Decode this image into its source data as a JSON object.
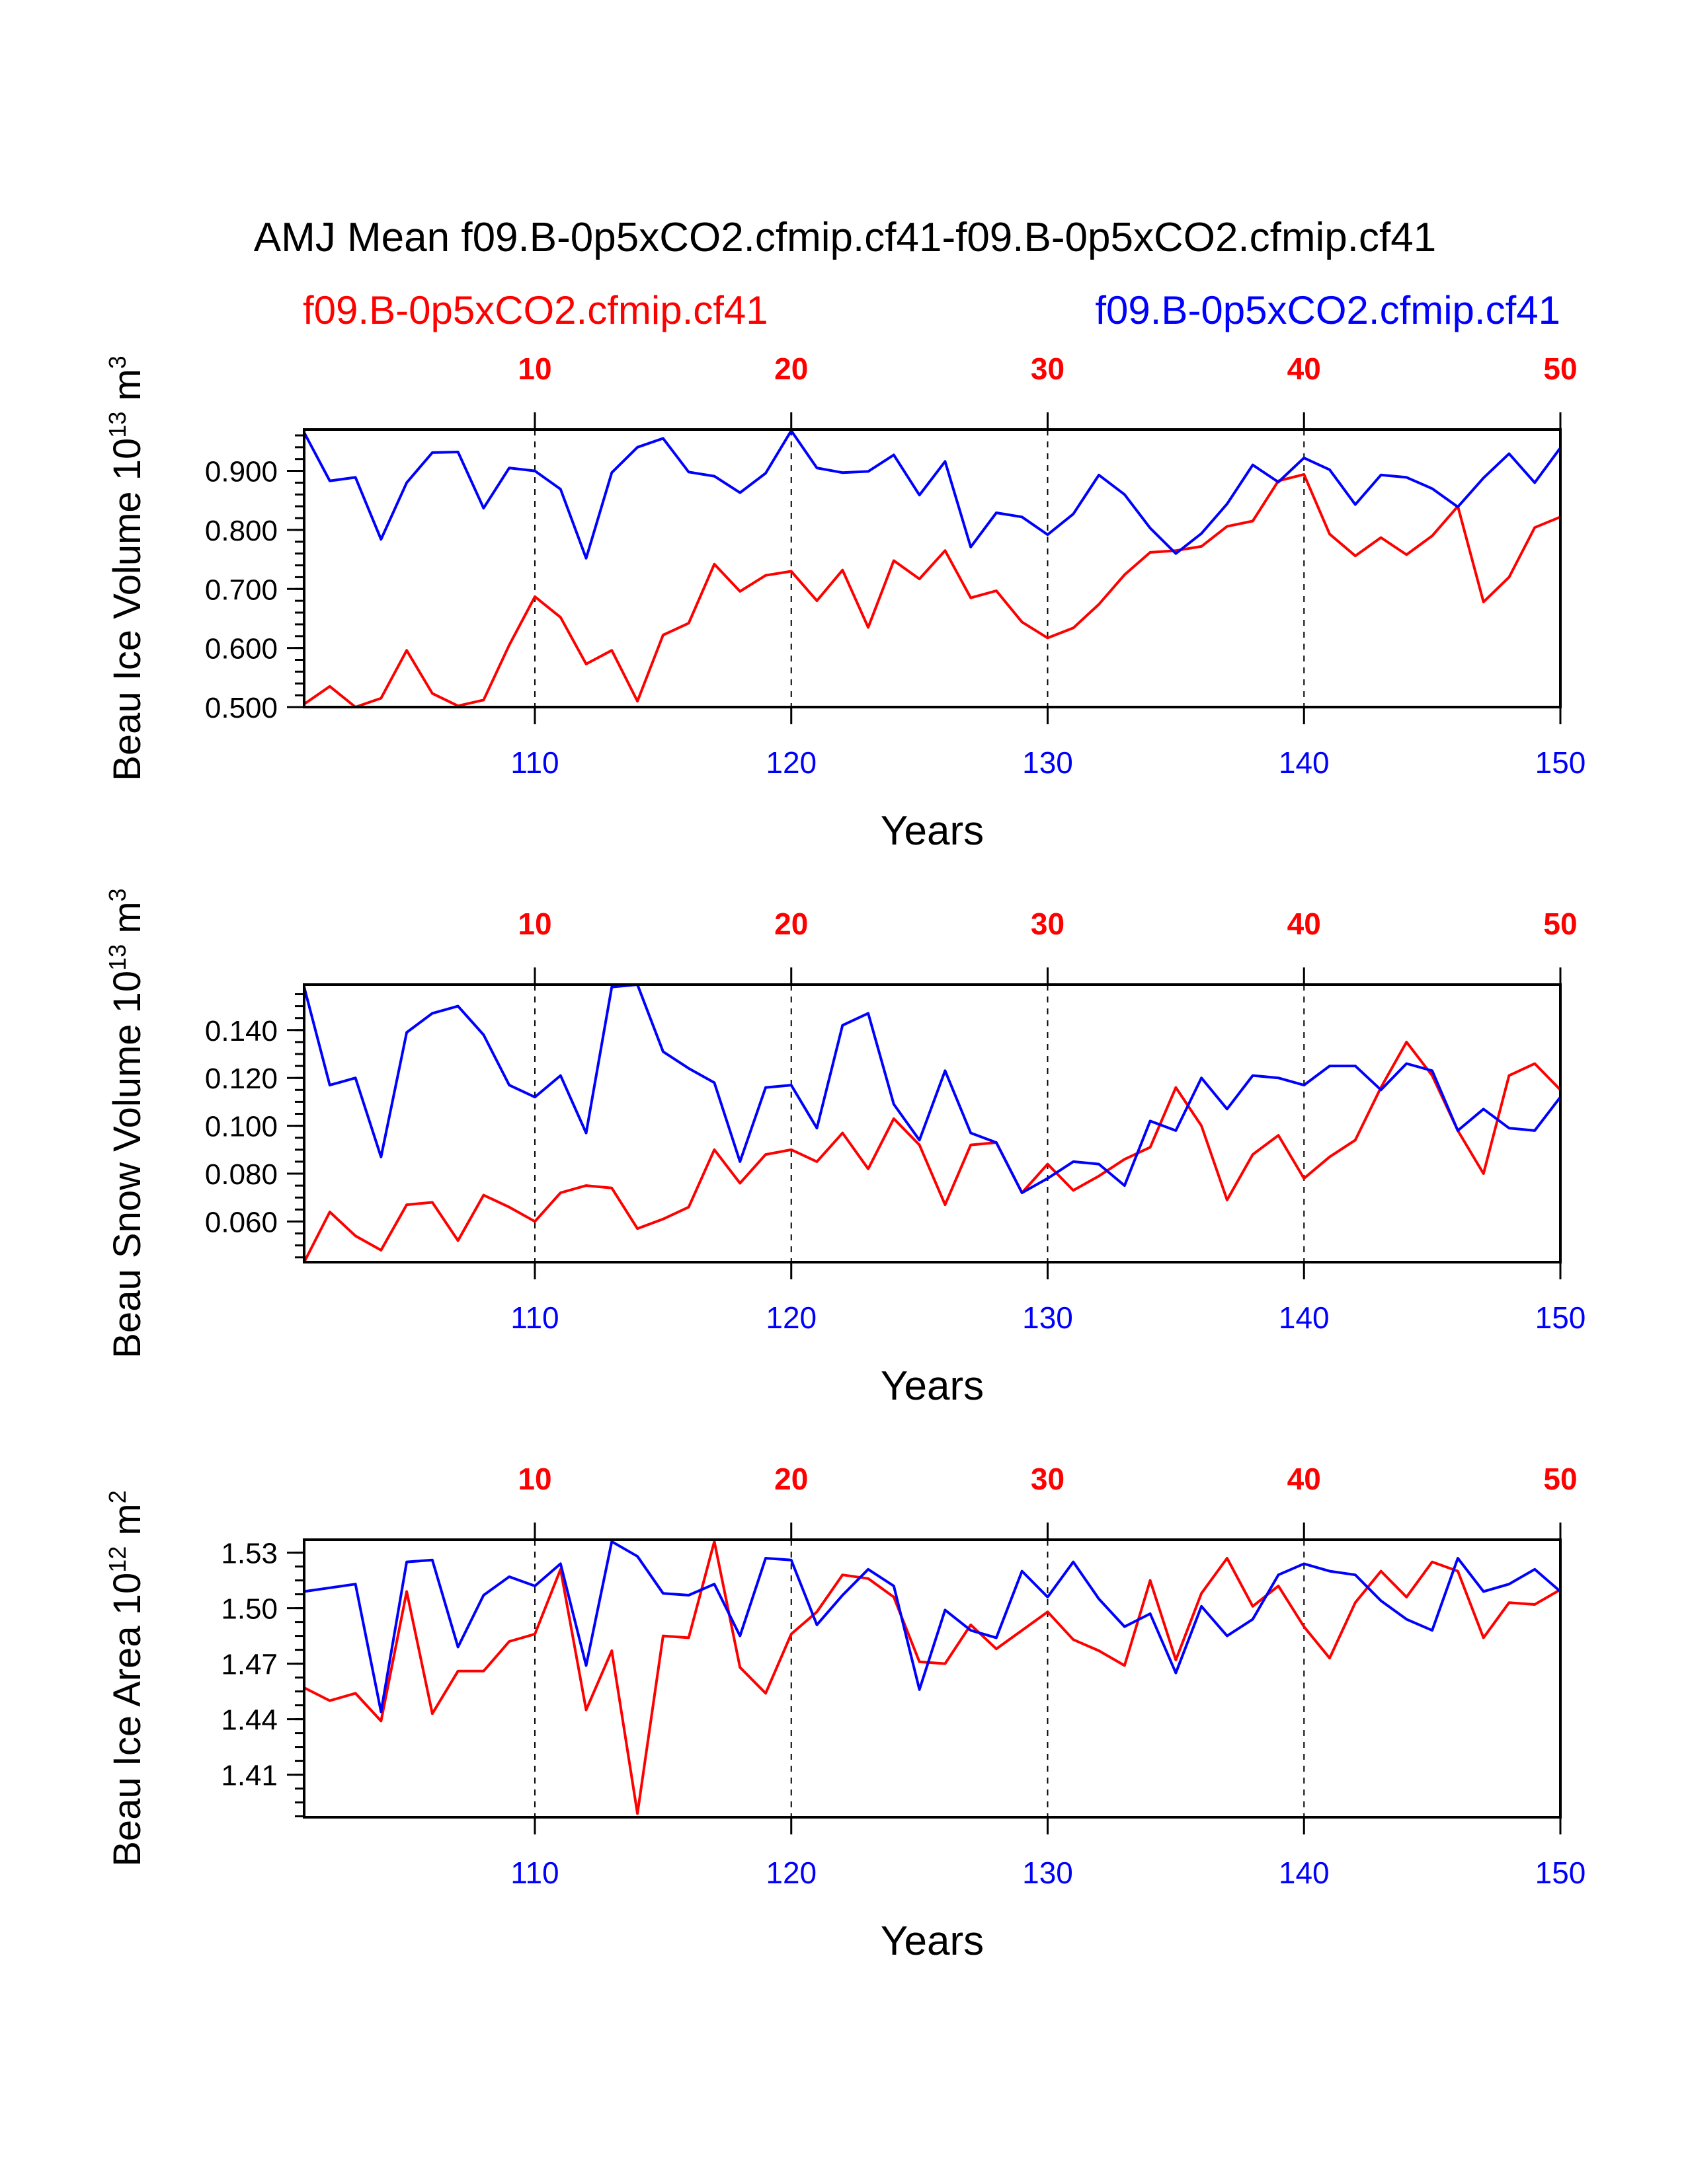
{
  "title": "AMJ Mean f09.B-0p5xCO2.cfmip.cf41-f09.B-0p5xCO2.cfmip.cf41",
  "legend": {
    "left": "f09.B-0p5xCO2.cfmip.cf41",
    "right": "f09.B-0p5xCO2.cfmip.cf41"
  },
  "colors": {
    "red": "#ff0000",
    "blue": "#0000ff",
    "axis": "#000000"
  },
  "chart_data": [
    {
      "type": "line",
      "ylabel": "Beau Ice Volume 10^13 m^3",
      "ylabel_main": "Beau Ice Volume 10",
      "ylabel_exp": "13",
      "ylabel_unit": " m",
      "ylabel_unit_exp": "3",
      "xlabel": "Years",
      "ylim": [
        0.5,
        0.97
      ],
      "yticks": [
        0.5,
        0.6,
        0.7,
        0.8,
        0.9
      ],
      "ytick_labels": [
        "0.500",
        "0.600",
        "0.700",
        "0.800",
        "0.900"
      ],
      "yminor_step": 0.02,
      "xlim": [
        101,
        150
      ],
      "bottom_xticks": [
        110,
        120,
        130,
        140,
        150
      ],
      "bottom_xtick_labels": [
        "110",
        "120",
        "130",
        "140",
        "150"
      ],
      "top_xtick_labels": [
        "10",
        "20",
        "30",
        "40",
        "50"
      ],
      "grid": "dashed vertical at 110, 120, 130, 140",
      "x": [
        101,
        102,
        103,
        104,
        105,
        106,
        107,
        108,
        109,
        110,
        111,
        112,
        113,
        114,
        115,
        116,
        117,
        118,
        119,
        120,
        121,
        122,
        123,
        124,
        125,
        126,
        127,
        128,
        129,
        130,
        131,
        132,
        133,
        134,
        135,
        136,
        137,
        138,
        139,
        140,
        141,
        142,
        143,
        144,
        145,
        146,
        147,
        148,
        149,
        150
      ],
      "series": [
        {
          "name": "f09.B-0p5xCO2.cfmip.cf41 (red)",
          "color": "red",
          "values": [
            0.505,
            0.535,
            0.5,
            0.515,
            0.596,
            0.523,
            0.502,
            0.512,
            0.605,
            0.687,
            0.652,
            0.573,
            0.596,
            0.51,
            0.622,
            0.642,
            0.742,
            0.696,
            0.723,
            0.73,
            0.68,
            0.732,
            0.635,
            0.748,
            0.717,
            0.765,
            0.685,
            0.697,
            0.644,
            0.617,
            0.634,
            0.674,
            0.724,
            0.762,
            0.765,
            0.772,
            0.806,
            0.815,
            0.883,
            0.894,
            0.793,
            0.756,
            0.787,
            0.758,
            0.79,
            0.84,
            0.678,
            0.72,
            0.804,
            0.822
          ]
        },
        {
          "name": "f09.B-0p5xCO2.cfmip.cf41 (blue)",
          "color": "blue",
          "values": [
            0.965,
            0.883,
            0.889,
            0.784,
            0.88,
            0.931,
            0.932,
            0.837,
            0.905,
            0.9,
            0.869,
            0.752,
            0.897,
            0.94,
            0.955,
            0.898,
            0.891,
            0.863,
            0.896,
            0.968,
            0.905,
            0.897,
            0.899,
            0.927,
            0.859,
            0.916,
            0.771,
            0.829,
            0.822,
            0.792,
            0.827,
            0.893,
            0.86,
            0.803,
            0.76,
            0.794,
            0.844,
            0.91,
            0.881,
            0.922,
            0.902,
            0.843,
            0.893,
            0.889,
            0.87,
            0.839,
            0.888,
            0.929,
            0.88,
            0.939
          ]
        }
      ]
    },
    {
      "type": "line",
      "ylabel": "Beau Snow Volume 10^13 m^3",
      "ylabel_main": "Beau Snow Volume 10",
      "ylabel_exp": "13",
      "ylabel_unit": " m",
      "ylabel_unit_exp": "3",
      "xlabel": "Years",
      "ylim": [
        0.043,
        0.159
      ],
      "yticks": [
        0.06,
        0.08,
        0.1,
        0.12,
        0.14
      ],
      "ytick_labels": [
        "0.060",
        "0.080",
        "0.100",
        "0.120",
        "0.140"
      ],
      "yminor_step": 0.005,
      "xlim": [
        101,
        150
      ],
      "bottom_xticks": [
        110,
        120,
        130,
        140,
        150
      ],
      "bottom_xtick_labels": [
        "110",
        "120",
        "130",
        "140",
        "150"
      ],
      "top_xtick_labels": [
        "10",
        "20",
        "30",
        "40",
        "50"
      ],
      "grid": "dashed vertical at 110, 120, 130, 140",
      "x": [
        101,
        102,
        103,
        104,
        105,
        106,
        107,
        108,
        109,
        110,
        111,
        112,
        113,
        114,
        115,
        116,
        117,
        118,
        119,
        120,
        121,
        122,
        123,
        124,
        125,
        126,
        127,
        128,
        129,
        130,
        131,
        132,
        133,
        134,
        135,
        136,
        137,
        138,
        139,
        140,
        141,
        142,
        143,
        144,
        145,
        146,
        147,
        148,
        149,
        150
      ],
      "series": [
        {
          "name": "f09.B-0p5xCO2.cfmip.cf41 (red)",
          "color": "red",
          "values": [
            0.043,
            0.064,
            0.054,
            0.048,
            0.067,
            0.068,
            0.052,
            0.071,
            0.066,
            0.06,
            0.072,
            0.075,
            0.074,
            0.057,
            0.061,
            0.066,
            0.09,
            0.076,
            0.088,
            0.09,
            0.085,
            0.097,
            0.082,
            0.103,
            0.092,
            0.067,
            0.092,
            0.093,
            0.072,
            0.084,
            0.073,
            0.079,
            0.086,
            0.091,
            0.116,
            0.1,
            0.069,
            0.088,
            0.096,
            0.078,
            0.087,
            0.094,
            0.116,
            0.135,
            0.121,
            0.098,
            0.08,
            0.121,
            0.126,
            0.115
          ]
        },
        {
          "name": "f09.B-0p5xCO2.cfmip.cf41 (blue)",
          "color": "blue",
          "values": [
            0.158,
            0.117,
            0.12,
            0.087,
            0.139,
            0.147,
            0.15,
            0.138,
            0.117,
            0.112,
            0.121,
            0.097,
            0.158,
            0.159,
            0.131,
            0.124,
            0.118,
            0.085,
            0.116,
            0.117,
            0.099,
            0.142,
            0.147,
            0.109,
            0.094,
            0.123,
            0.097,
            0.093,
            0.072,
            0.078,
            0.085,
            0.084,
            0.075,
            0.102,
            0.098,
            0.12,
            0.107,
            0.121,
            0.12,
            0.117,
            0.125,
            0.125,
            0.115,
            0.126,
            0.123,
            0.098,
            0.107,
            0.099,
            0.098,
            0.112
          ]
        }
      ]
    },
    {
      "type": "line",
      "ylabel": "Beau Ice Area 10^12 m^2",
      "ylabel_main": "Beau Ice Area 10",
      "ylabel_exp": "12",
      "ylabel_unit": " m",
      "ylabel_unit_exp": "2",
      "xlabel": "Years",
      "ylim": [
        1.387,
        1.537
      ],
      "yticks": [
        1.41,
        1.44,
        1.47,
        1.5,
        1.53
      ],
      "ytick_labels": [
        "1.41",
        "1.44",
        "1.47",
        "1.50",
        "1.53"
      ],
      "yminor_step": 0.0075,
      "xlim": [
        101,
        150
      ],
      "bottom_xticks": [
        110,
        120,
        130,
        140,
        150
      ],
      "bottom_xtick_labels": [
        "110",
        "120",
        "130",
        "140",
        "150"
      ],
      "top_xtick_labels": [
        "10",
        "20",
        "30",
        "40",
        "50"
      ],
      "grid": "dashed vertical at 110, 120, 130, 140",
      "x": [
        101,
        102,
        103,
        104,
        105,
        106,
        107,
        108,
        109,
        110,
        111,
        112,
        113,
        114,
        115,
        116,
        117,
        118,
        119,
        120,
        121,
        122,
        123,
        124,
        125,
        126,
        127,
        128,
        129,
        130,
        131,
        132,
        133,
        134,
        135,
        136,
        137,
        138,
        139,
        140,
        141,
        142,
        143,
        144,
        145,
        146,
        147,
        148,
        149,
        150
      ],
      "series": [
        {
          "name": "f09.B-0p5xCO2.cfmip.cf41 (red)",
          "color": "red",
          "values": [
            1.457,
            1.45,
            1.454,
            1.439,
            1.509,
            1.443,
            1.466,
            1.466,
            1.482,
            1.486,
            1.521,
            1.445,
            1.477,
            1.389,
            1.485,
            1.484,
            1.536,
            1.468,
            1.454,
            1.486,
            1.498,
            1.518,
            1.516,
            1.506,
            1.471,
            1.47,
            1.491,
            1.478,
            1.488,
            1.498,
            1.483,
            1.477,
            1.469,
            1.515,
            1.472,
            1.508,
            1.527,
            1.501,
            1.512,
            1.49,
            1.473,
            1.503,
            1.52,
            1.506,
            1.525,
            1.52,
            1.484,
            1.503,
            1.502,
            1.51
          ]
        },
        {
          "name": "f09.B-0p5xCO2.cfmip.cf41 (blue)",
          "color": "blue",
          "values": [
            1.509,
            1.511,
            1.513,
            1.444,
            1.525,
            1.526,
            1.479,
            1.507,
            1.517,
            1.512,
            1.524,
            1.469,
            1.536,
            1.528,
            1.508,
            1.507,
            1.513,
            1.485,
            1.527,
            1.526,
            1.491,
            1.507,
            1.521,
            1.512,
            1.456,
            1.499,
            1.488,
            1.484,
            1.52,
            1.506,
            1.525,
            1.505,
            1.49,
            1.497,
            1.465,
            1.501,
            1.485,
            1.494,
            1.518,
            1.524,
            1.52,
            1.518,
            1.504,
            1.494,
            1.488,
            1.527,
            1.509,
            1.513,
            1.521,
            1.509
          ]
        }
      ]
    }
  ]
}
